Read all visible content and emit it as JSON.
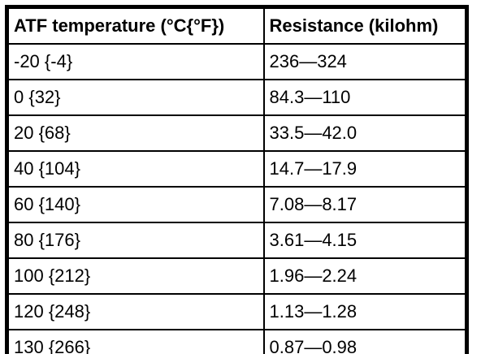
{
  "table": {
    "columns": [
      {
        "key": "temperature",
        "label": "ATF temperature (°C{°F})"
      },
      {
        "key": "resistance",
        "label": "Resistance (kilohm)"
      }
    ],
    "rows": [
      {
        "temperature": "-20 {-4}",
        "resistance": "236—324"
      },
      {
        "temperature": "0 {32}",
        "resistance": "84.3—110"
      },
      {
        "temperature": "20 {68}",
        "resistance": "33.5—42.0"
      },
      {
        "temperature": "40 {104}",
        "resistance": "14.7—17.9"
      },
      {
        "temperature": "60 {140}",
        "resistance": "7.08—8.17"
      },
      {
        "temperature": "80 {176}",
        "resistance": "3.61—4.15"
      },
      {
        "temperature": "100 {212}",
        "resistance": "1.96—2.24"
      },
      {
        "temperature": "120 {248}",
        "resistance": "1.13—1.28"
      },
      {
        "temperature": "130 {266}",
        "resistance": "0.87—0.98"
      }
    ],
    "colors": {
      "border": "#000000",
      "text": "#000000",
      "background": "#ffffff"
    }
  }
}
